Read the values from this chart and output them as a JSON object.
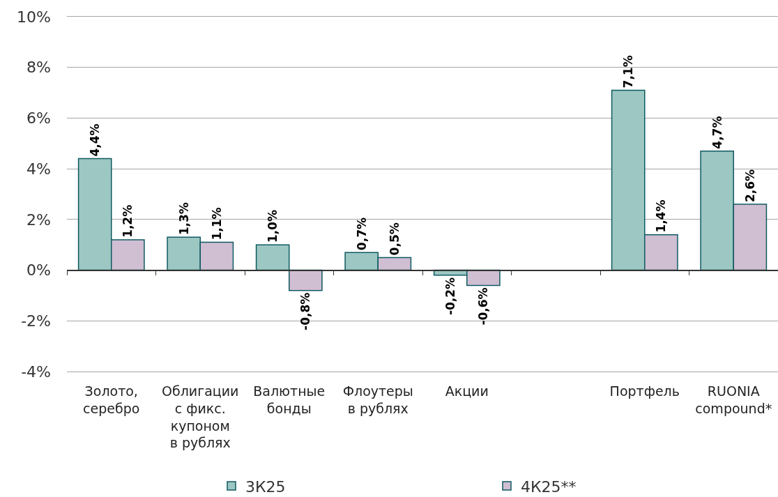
{
  "chart_data": {
    "type": "bar",
    "categories": [
      "Золото,\nсеребро",
      "Облигации\nс фикс.\nкупоном\nв рублях",
      "Валютные\nбонды",
      "Флоутеры\nв рублях",
      "Акции",
      null,
      "Портфель",
      "RUONIA\ncompound*"
    ],
    "series": [
      {
        "name": "3К25",
        "color": "#9dc7c2",
        "values": [
          4.4,
          1.3,
          1.0,
          0.7,
          -0.2,
          null,
          7.1,
          4.7
        ],
        "value_labels": [
          "4,4%",
          "1,3%",
          "1,0%",
          "0,7%",
          "-0,2%",
          null,
          "7,1%",
          "4,7%"
        ]
      },
      {
        "name": "4К25**",
        "color": "#d0bed3",
        "values": [
          1.2,
          1.1,
          -0.8,
          0.5,
          -0.6,
          null,
          1.4,
          2.6
        ],
        "value_labels": [
          "1,2%",
          "1,1%",
          "-0,8%",
          "0,5%",
          "-0,6%",
          null,
          "1,4%",
          "2,6%"
        ]
      }
    ],
    "ylim": [
      -4,
      10
    ],
    "yticks": [
      {
        "value": -4,
        "label": "-4%"
      },
      {
        "value": -2,
        "label": "-2%"
      },
      {
        "value": 0,
        "label": "0%"
      },
      {
        "value": 2,
        "label": "2%"
      },
      {
        "value": 4,
        "label": "4%"
      },
      {
        "value": 6,
        "label": "6%"
      },
      {
        "value": 8,
        "label": "8%"
      },
      {
        "value": 10,
        "label": "10%"
      }
    ],
    "grid": "y",
    "legend": "bottom"
  }
}
